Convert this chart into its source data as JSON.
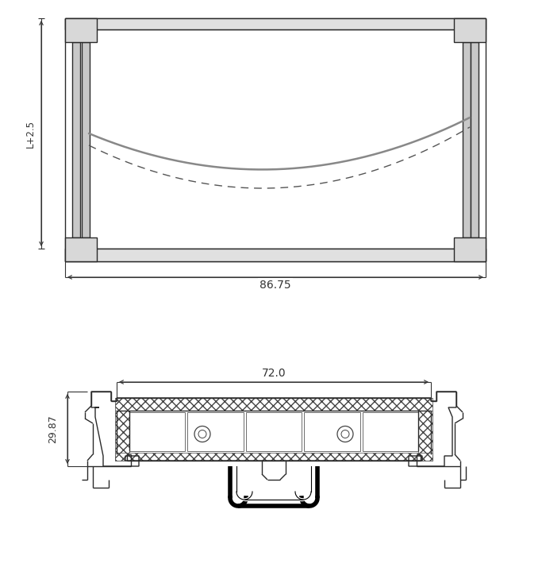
{
  "bg_color": "#ffffff",
  "lc": "#2a2a2a",
  "dc": "#333333",
  "top_view": {
    "label_L25": "L+2.5",
    "label_8675": "86.75"
  },
  "bottom_view": {
    "label_720": "72.0",
    "label_2987": "29.87"
  }
}
